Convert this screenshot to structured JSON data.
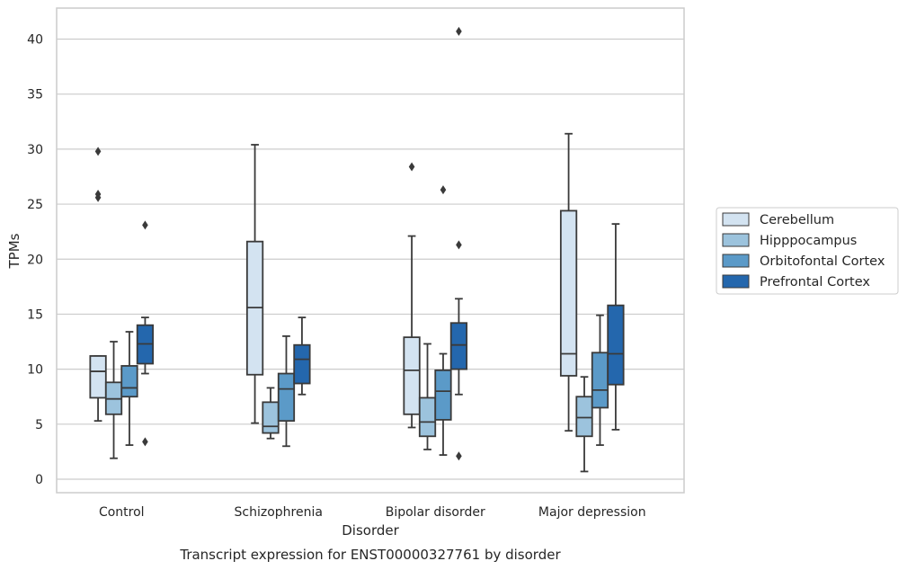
{
  "chart_data": {
    "type": "box",
    "title": "",
    "xlabel": "Disorder",
    "ylabel": "TPMs",
    "caption": "Transcript expression for ENST00000327761 by disorder",
    "categories": [
      "Control",
      "Schizophrenia",
      "Bipolar disorder",
      "Major depression"
    ],
    "yticks": [
      0,
      5,
      10,
      15,
      20,
      25,
      30,
      35,
      40
    ],
    "ylim": [
      -1.2,
      43
    ],
    "grid": "horizontal",
    "legend_position": "right",
    "series": [
      {
        "name": "Cerebellum",
        "color": "#d3e3f1",
        "boxes": [
          {
            "whisker_low": 5.3,
            "q1": 7.4,
            "median": 9.8,
            "q3": 11.2,
            "whisker_high": 11.2,
            "outliers": [
              25.6,
              25.9,
              29.8
            ]
          },
          {
            "whisker_low": 5.1,
            "q1": 9.5,
            "median": 15.6,
            "q3": 21.6,
            "whisker_high": 30.4,
            "outliers": []
          },
          {
            "whisker_low": 4.7,
            "q1": 5.9,
            "median": 9.9,
            "q3": 12.9,
            "whisker_high": 22.1,
            "outliers": [
              28.4
            ]
          },
          {
            "whisker_low": 4.4,
            "q1": 9.4,
            "median": 11.4,
            "q3": 24.4,
            "whisker_high": 31.4,
            "outliers": []
          }
        ]
      },
      {
        "name": "Hipppocampus",
        "color": "#9cc3dd",
        "boxes": [
          {
            "whisker_low": 1.9,
            "q1": 5.9,
            "median": 7.3,
            "q3": 8.8,
            "whisker_high": 12.5,
            "outliers": []
          },
          {
            "whisker_low": 3.7,
            "q1": 4.2,
            "median": 4.8,
            "q3": 7.0,
            "whisker_high": 8.3,
            "outliers": []
          },
          {
            "whisker_low": 2.7,
            "q1": 3.9,
            "median": 5.2,
            "q3": 7.4,
            "whisker_high": 12.3,
            "outliers": []
          },
          {
            "whisker_low": 0.7,
            "q1": 3.9,
            "median": 5.6,
            "q3": 7.5,
            "whisker_high": 9.3,
            "outliers": []
          }
        ]
      },
      {
        "name": "Orbitofontal Cortex",
        "color": "#5b9ac8",
        "boxes": [
          {
            "whisker_low": 3.1,
            "q1": 7.5,
            "median": 8.3,
            "q3": 10.3,
            "whisker_high": 13.4,
            "outliers": []
          },
          {
            "whisker_low": 3.0,
            "q1": 5.3,
            "median": 8.2,
            "q3": 9.6,
            "whisker_high": 13.0,
            "outliers": []
          },
          {
            "whisker_low": 2.2,
            "q1": 5.4,
            "median": 8.0,
            "q3": 9.9,
            "whisker_high": 11.4,
            "outliers": [
              26.3
            ]
          },
          {
            "whisker_low": 3.1,
            "q1": 6.5,
            "median": 8.1,
            "q3": 11.5,
            "whisker_high": 14.9,
            "outliers": []
          }
        ]
      },
      {
        "name": "Prefrontal Cortex",
        "color": "#2467ad",
        "boxes": [
          {
            "whisker_low": 9.6,
            "q1": 10.5,
            "median": 12.3,
            "q3": 14.0,
            "whisker_high": 14.7,
            "outliers": [
              3.4,
              23.1
            ]
          },
          {
            "whisker_low": 7.7,
            "q1": 8.7,
            "median": 10.9,
            "q3": 12.2,
            "whisker_high": 14.7,
            "outliers": []
          },
          {
            "whisker_low": 7.7,
            "q1": 10.0,
            "median": 12.2,
            "q3": 14.2,
            "whisker_high": 16.4,
            "outliers": [
              2.1,
              21.3,
              40.7
            ]
          },
          {
            "whisker_low": 4.5,
            "q1": 8.6,
            "median": 11.4,
            "q3": 15.8,
            "whisker_high": 23.2,
            "outliers": []
          }
        ]
      }
    ]
  }
}
